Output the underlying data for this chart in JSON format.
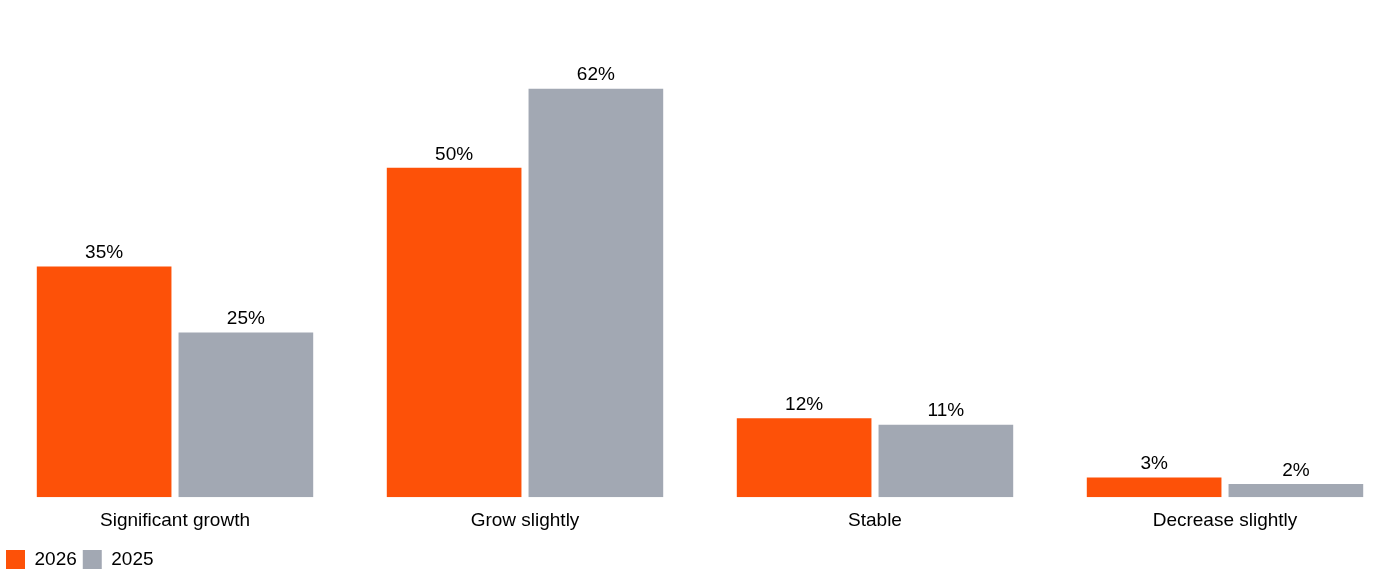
{
  "chart_data": {
    "type": "bar",
    "categories": [
      "Significant growth",
      "Grow slightly",
      "Stable",
      "Decrease slightly"
    ],
    "series": [
      {
        "name": "2026",
        "color": "#fd5108",
        "values": [
          35,
          50,
          12,
          3
        ],
        "value_labels": [
          "35%",
          "50%",
          "12%",
          "3%"
        ]
      },
      {
        "name": "2025",
        "color": "#a2a8b3",
        "values": [
          25,
          62,
          11,
          2
        ],
        "value_labels": [
          "25%",
          "62%",
          "11%",
          "2%"
        ]
      }
    ],
    "grid": false,
    "legend": "bottom left"
  }
}
